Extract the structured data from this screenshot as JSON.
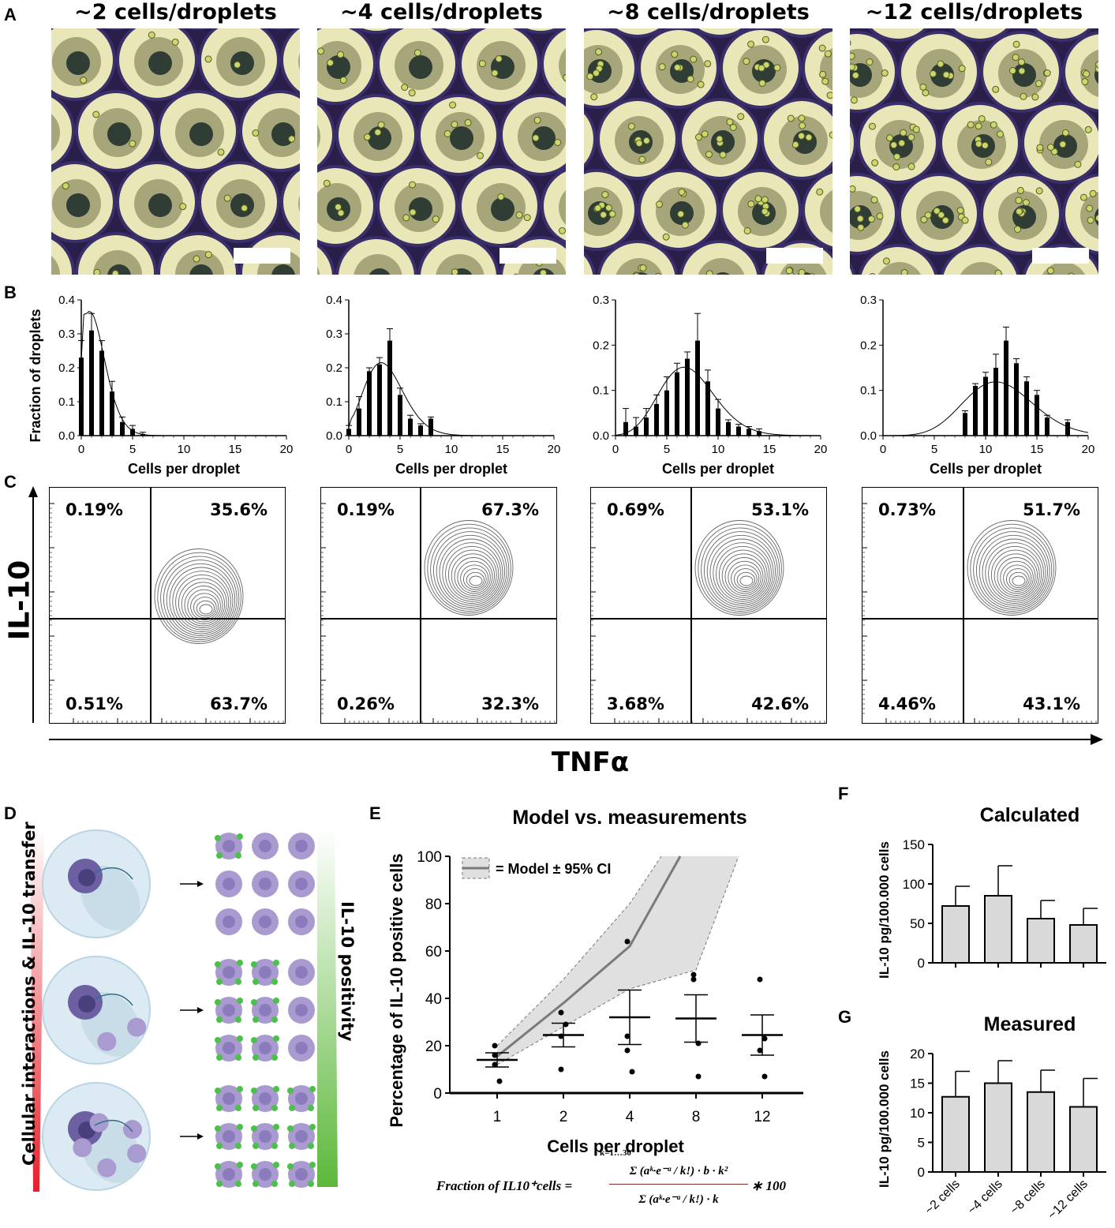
{
  "panels": {
    "A": "A",
    "B": "B",
    "C": "C",
    "D": "D",
    "E": "E",
    "F": "F",
    "G": "G"
  },
  "panel_a": {
    "titles": [
      "~2 cells/droplets",
      "~4 cells/droplets",
      "~8 cells/droplets",
      "~12 cells/droplets"
    ]
  },
  "panel_b": {
    "ylabel": "Fraction of droplets",
    "xlabel": "Cells per droplet"
  },
  "panel_c": {
    "ylabel": "IL-10",
    "xlabel": "TNFα",
    "plots": [
      {
        "ul": "0.19%",
        "ur": "35.6%",
        "ll": "0.51%",
        "lr": "63.7%"
      },
      {
        "ul": "0.19%",
        "ur": "67.3%",
        "ll": "0.26%",
        "lr": "32.3%"
      },
      {
        "ul": "0.69%",
        "ur": "53.1%",
        "ll": "3.68%",
        "lr": "42.6%"
      },
      {
        "ul": "0.73%",
        "ur": "51.7%",
        "ll": "4.46%",
        "lr": "43.1%"
      }
    ]
  },
  "panel_d": {
    "left_label": "Cellular interactions & IL-10 transfer",
    "right_label": "IL-10 positivity"
  },
  "panel_e": {
    "formula_lhs": "Fraction of IL10⁺cells =",
    "formula_num": "Σ (aᵏ·e⁻ᵃ / k!) · b · k²",
    "formula_den": "Σ (aᵏ·e⁻ᵃ / k!) · k",
    "formula_tail": "∗ 100",
    "formula_sum_range": "k=1…30"
  },
  "colors": {
    "bar_dark": "#000000",
    "bar_light": "#d9d9d9",
    "ci_band": "#e0e0e0",
    "model_line": "#7a7a7a",
    "contour": "#666666",
    "red_gradient": "#e8202a",
    "green_gradient": "#5cb83a",
    "cell_purple": "#a99ad0",
    "il10_green": "#4cc04a"
  },
  "chart_data": [
    {
      "type": "bar",
      "panel": "B",
      "title": "~2 cells/droplets",
      "xlabel": "Cells per droplet",
      "ylabel": "Fraction of droplets",
      "xlim": [
        0,
        20
      ],
      "ylim": [
        0,
        0.4
      ],
      "yticks": [
        0.0,
        0.1,
        0.2,
        0.3,
        0.4
      ],
      "xticks": [
        0,
        5,
        10,
        15,
        20
      ],
      "x": [
        0,
        1,
        2,
        3,
        4,
        5,
        6
      ],
      "values": [
        0.23,
        0.31,
        0.25,
        0.13,
        0.04,
        0.02,
        0.005
      ],
      "errors": [
        0.05,
        0.05,
        0.03,
        0.03,
        0.015,
        0.01,
        0.005
      ],
      "fit": {
        "type": "poisson",
        "mean": 1.5
      }
    },
    {
      "type": "bar",
      "panel": "B",
      "title": "~4 cells/droplets",
      "xlabel": "Cells per droplet",
      "ylabel": "",
      "xlim": [
        0,
        20
      ],
      "ylim": [
        0,
        0.4
      ],
      "yticks": [
        0.0,
        0.1,
        0.2,
        0.3,
        0.4
      ],
      "xticks": [
        0,
        5,
        10,
        15,
        20
      ],
      "x": [
        0,
        1,
        2,
        3,
        4,
        5,
        6,
        7,
        8
      ],
      "values": [
        0.02,
        0.08,
        0.19,
        0.21,
        0.28,
        0.12,
        0.05,
        0.03,
        0.05
      ],
      "errors": [
        0.01,
        0.035,
        0.01,
        0.02,
        0.035,
        0.02,
        0.01,
        0.005,
        0.005
      ],
      "fit": {
        "type": "poisson",
        "mean": 3.7
      }
    },
    {
      "type": "bar",
      "panel": "B",
      "title": "~8 cells/droplets",
      "xlabel": "Cells per droplet",
      "ylabel": "",
      "xlim": [
        0,
        20
      ],
      "ylim": [
        0,
        0.3
      ],
      "yticks": [
        0.0,
        0.1,
        0.2,
        0.3
      ],
      "xticks": [
        0,
        5,
        10,
        15,
        20
      ],
      "x": [
        1,
        2,
        3,
        4,
        5,
        6,
        7,
        8,
        9,
        10,
        11,
        12,
        13,
        14
      ],
      "values": [
        0.03,
        0.02,
        0.04,
        0.07,
        0.1,
        0.14,
        0.17,
        0.21,
        0.12,
        0.06,
        0.03,
        0.02,
        0.015,
        0.01
      ],
      "errors": [
        0.03,
        0.02,
        0.02,
        0.02,
        0.03,
        0.02,
        0.015,
        0.06,
        0.025,
        0.02,
        0.005,
        0.005,
        0.005,
        0.005
      ],
      "fit": {
        "type": "poisson",
        "mean": 7.2
      }
    },
    {
      "type": "bar",
      "panel": "B",
      "title": "~12 cells/droplets",
      "xlabel": "Cells per droplet",
      "ylabel": "",
      "xlim": [
        0,
        20
      ],
      "ylim": [
        0,
        0.3
      ],
      "yticks": [
        0.0,
        0.1,
        0.2,
        0.3
      ],
      "xticks": [
        0,
        5,
        10,
        15,
        20
      ],
      "x": [
        8,
        9,
        10,
        11,
        12,
        13,
        14,
        15,
        16,
        18
      ],
      "values": [
        0.05,
        0.11,
        0.13,
        0.15,
        0.21,
        0.16,
        0.12,
        0.09,
        0.04,
        0.03
      ],
      "errors": [
        0.005,
        0.005,
        0.01,
        0.03,
        0.03,
        0.01,
        0.01,
        0.01,
        0.005,
        0.005
      ],
      "fit": {
        "type": "poisson",
        "mean": 11.5
      }
    },
    {
      "type": "scatter",
      "panel": "E",
      "title": "Model vs. measurements",
      "xlabel": "Cells per droplet",
      "ylabel": "Percentage of IL-10 positive cells",
      "categories": [
        "1",
        "2",
        "4",
        "8",
        "12"
      ],
      "ylim": [
        0,
        100
      ],
      "yticks": [
        0,
        20,
        40,
        60,
        80,
        100
      ],
      "points": [
        [
          5,
          12,
          16,
          20
        ],
        [
          10,
          24,
          29,
          34
        ],
        [
          9,
          18,
          24,
          64
        ],
        [
          7,
          21,
          48,
          50
        ],
        [
          7,
          18,
          23,
          48
        ]
      ],
      "means": [
        14,
        24.5,
        32,
        31.5,
        24.5
      ],
      "sem": [
        3,
        5,
        11.5,
        10,
        8.5
      ],
      "model": [
        15.5,
        38,
        62,
        100,
        100
      ],
      "model_upper": [
        20,
        48,
        80,
        100,
        100
      ],
      "model_lower": [
        12,
        28,
        46,
        80,
        100
      ],
      "legend": "= Model ± 95% CI"
    },
    {
      "type": "bar",
      "panel": "F",
      "title": "Calculated",
      "ylabel": "IL-10 pg/100.000 cells",
      "categories": [
        "~2 cells",
        "~4 cells",
        "~8 cells",
        "~12 cells"
      ],
      "values": [
        72,
        85,
        56,
        48
      ],
      "errors": [
        25,
        38,
        23,
        21
      ],
      "ylim": [
        0,
        150
      ],
      "yticks": [
        0,
        50,
        100,
        150
      ]
    },
    {
      "type": "bar",
      "panel": "G",
      "title": "Measured",
      "ylabel": "IL-10 pg/100.000 cells",
      "categories": [
        "~2 cells",
        "~4 cells",
        "~8 cells",
        "~12 cells"
      ],
      "values": [
        12.7,
        15.0,
        13.5,
        11.0
      ],
      "errors": [
        4.3,
        3.8,
        3.7,
        4.8
      ],
      "ylim": [
        0,
        20
      ],
      "yticks": [
        0,
        5,
        10,
        15,
        20
      ]
    }
  ]
}
